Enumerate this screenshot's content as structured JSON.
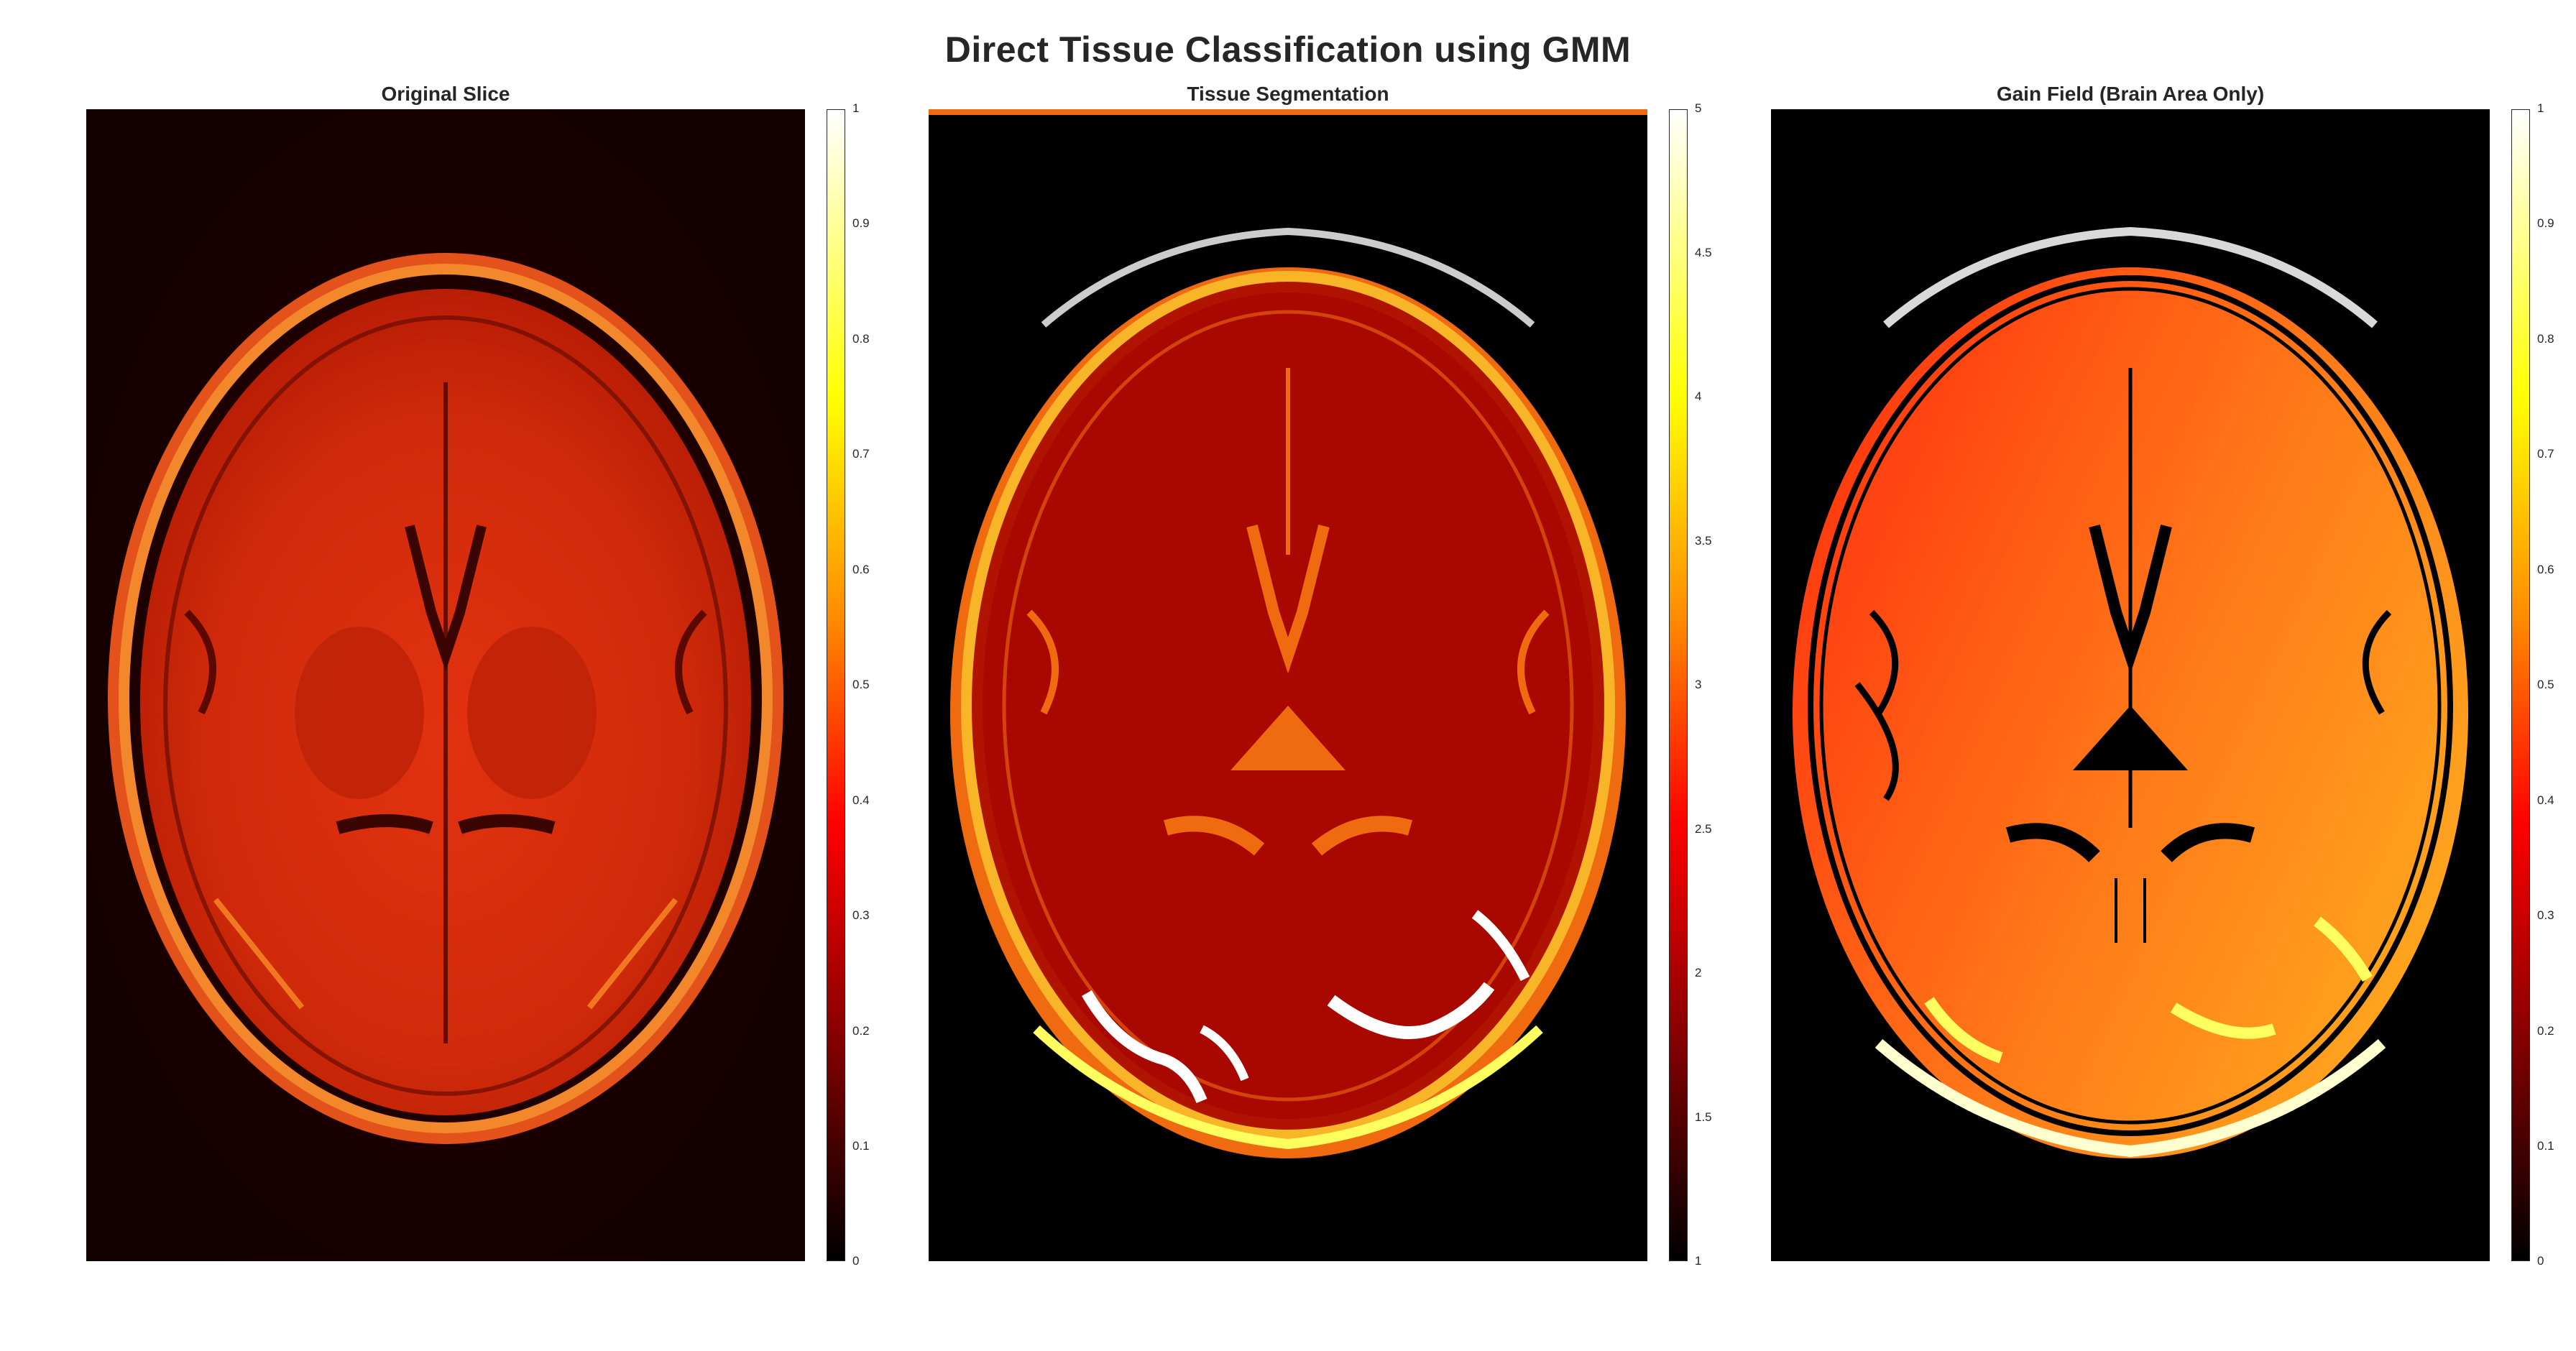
{
  "figure": {
    "title": "Direct Tissue Classification using GMM"
  },
  "panels": [
    {
      "title": "Original Slice",
      "colormap": "hot",
      "colorbar_ticks": [
        "0",
        "0.1",
        "0.2",
        "0.3",
        "0.4",
        "0.5",
        "0.6",
        "0.7",
        "0.8",
        "0.9",
        "1"
      ]
    },
    {
      "title": "Tissue Segmentation",
      "colormap": "hot",
      "colorbar_ticks": [
        "1",
        "1.5",
        "2",
        "2.5",
        "3",
        "3.5",
        "4",
        "4.5",
        "5"
      ]
    },
    {
      "title": "Gain Field (Brain Area Only)",
      "colormap": "hot",
      "colorbar_ticks": [
        "0",
        "0.1",
        "0.2",
        "0.3",
        "0.4",
        "0.5",
        "0.6",
        "0.7",
        "0.8",
        "0.9",
        "1"
      ]
    }
  ],
  "colors": {
    "hot_stops": [
      "#000000",
      "#8a0000",
      "#ff0000",
      "#ff8c00",
      "#ffff00",
      "#ffffff"
    ],
    "text": "#262626",
    "background": "#ffffff"
  }
}
